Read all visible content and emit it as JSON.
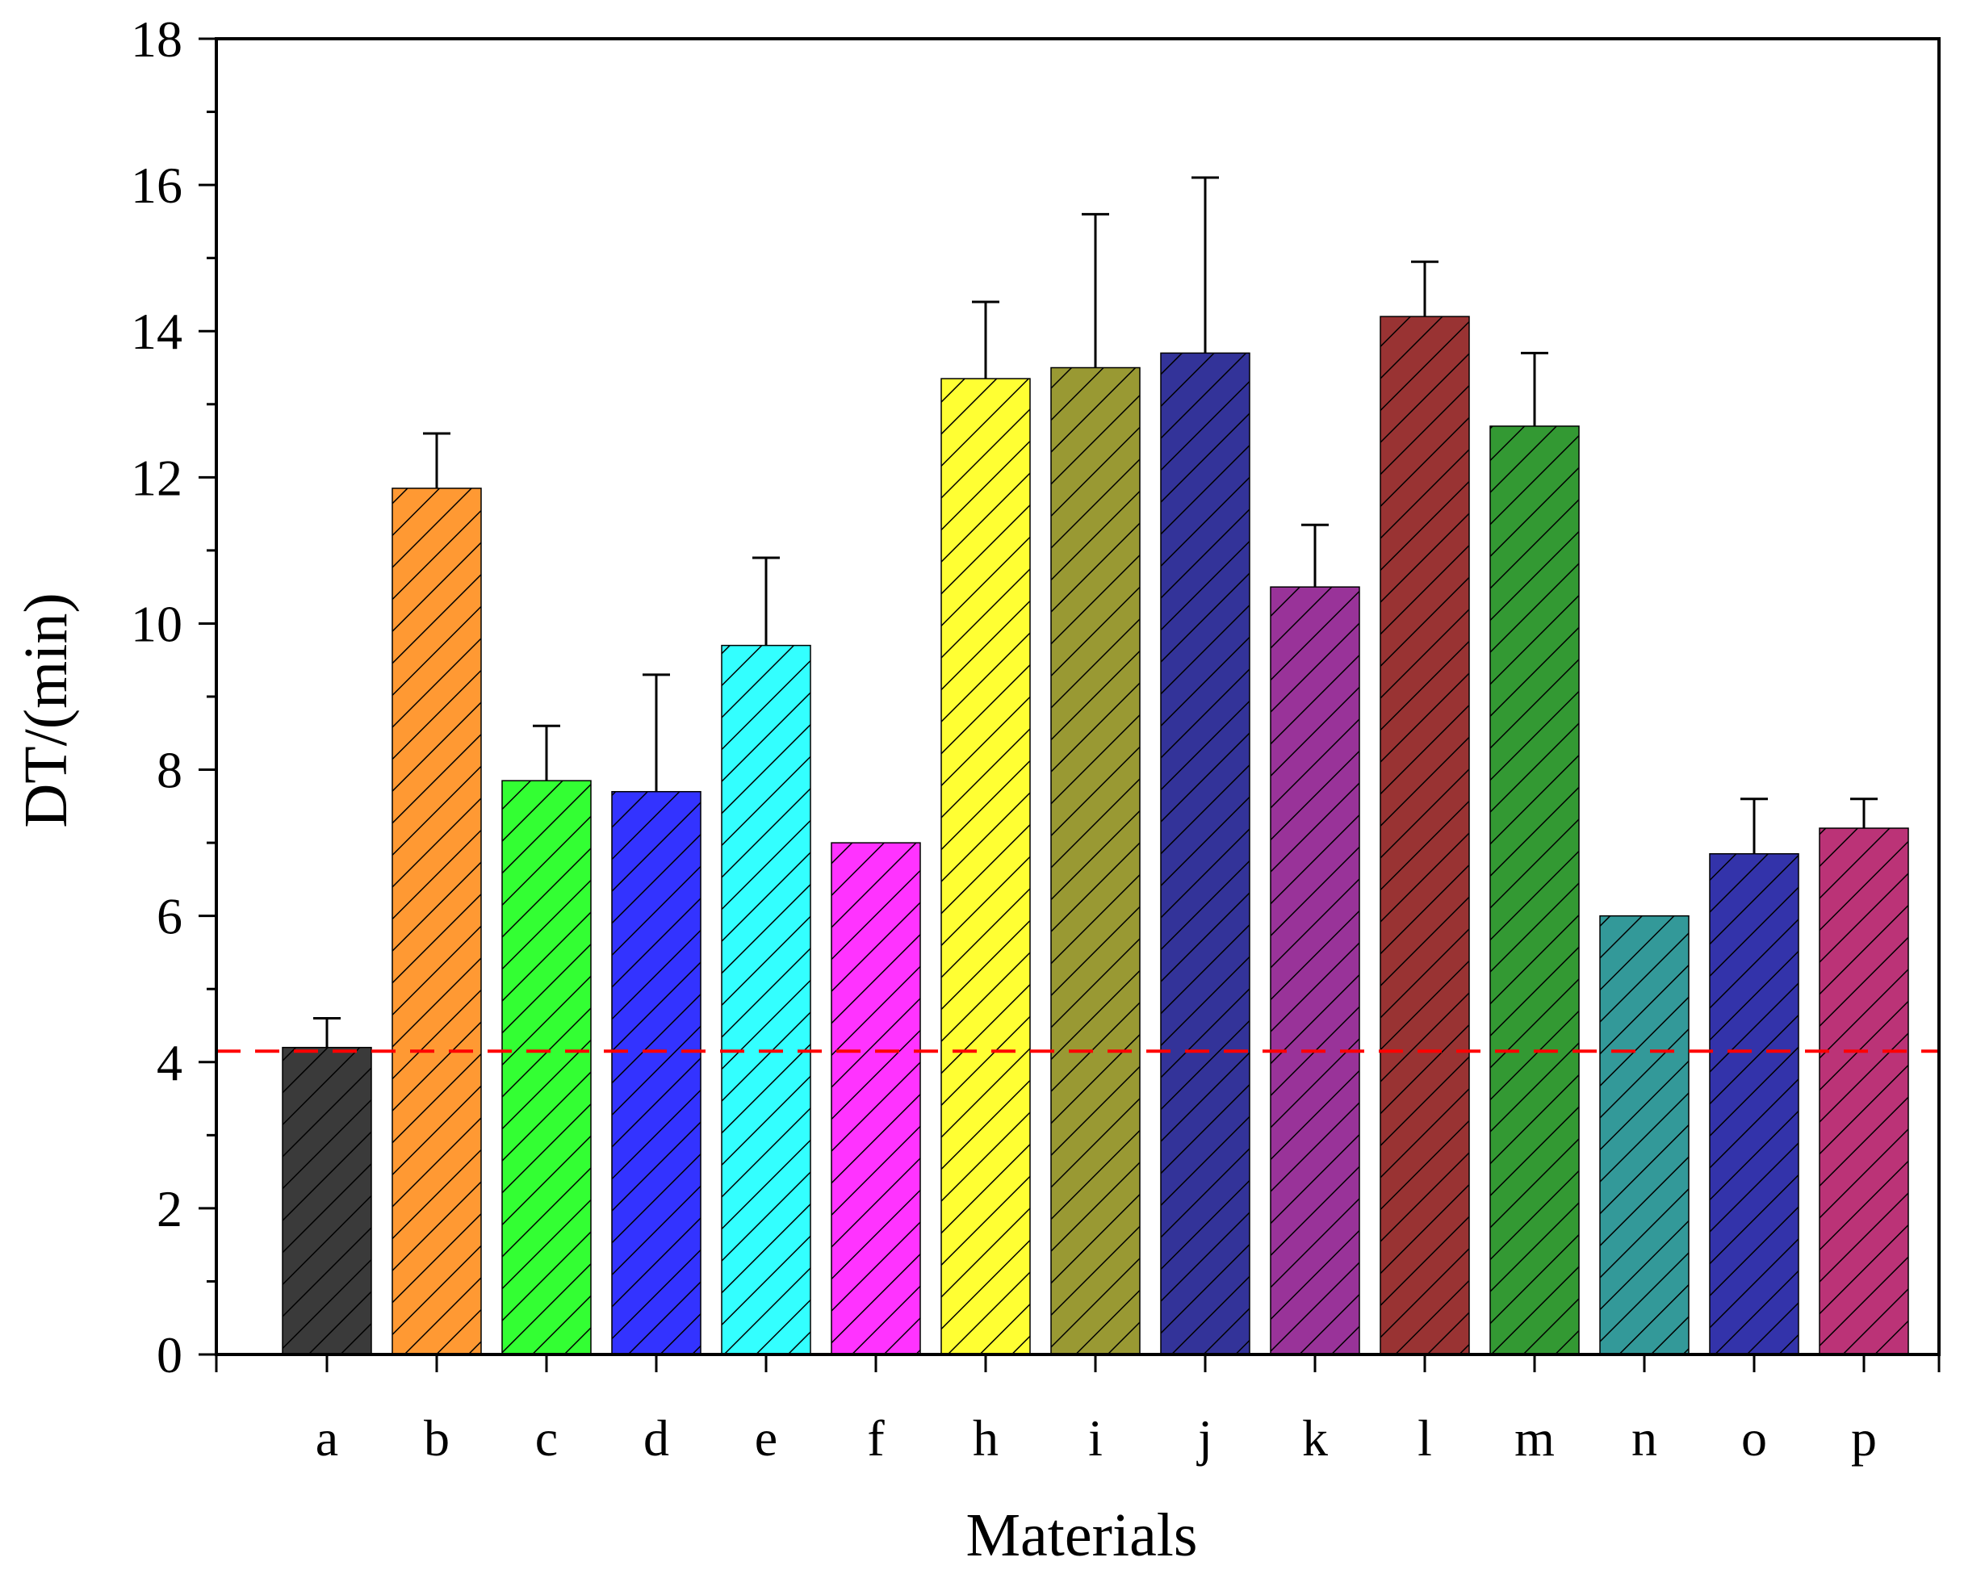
{
  "chart_data": {
    "type": "bar",
    "xlabel": "Materials",
    "ylabel": "DT/(min)",
    "ylim": [
      0,
      18
    ],
    "yticks": [
      0,
      2,
      4,
      6,
      8,
      10,
      12,
      14,
      16,
      18
    ],
    "grid": false,
    "legend": "none",
    "categories": [
      "a",
      "b",
      "c",
      "d",
      "e",
      "f",
      "h",
      "i",
      "j",
      "k",
      "l",
      "m",
      "n",
      "o",
      "p"
    ],
    "values": [
      4.2,
      11.85,
      7.85,
      7.7,
      9.7,
      7.0,
      13.35,
      13.5,
      13.7,
      10.5,
      14.2,
      12.7,
      6.0,
      6.85,
      7.2
    ],
    "error": [
      0.4,
      0.75,
      0.75,
      1.6,
      1.2,
      0,
      1.05,
      2.1,
      2.4,
      0.85,
      0.75,
      1.0,
      0,
      0.75,
      0.4
    ],
    "colors": [
      "#3a3a3a",
      "#ff9933",
      "#33ff33",
      "#3333ff",
      "#33ffff",
      "#ff33ff",
      "#ffff33",
      "#999933",
      "#333399",
      "#993399",
      "#993333",
      "#339933",
      "#339999",
      "#3333aa",
      "#bb3377"
    ],
    "reference_line": {
      "y": 4.15,
      "color": "#ff0000",
      "style": "dashed"
    },
    "bar_pattern": "diagonal-hatch"
  }
}
